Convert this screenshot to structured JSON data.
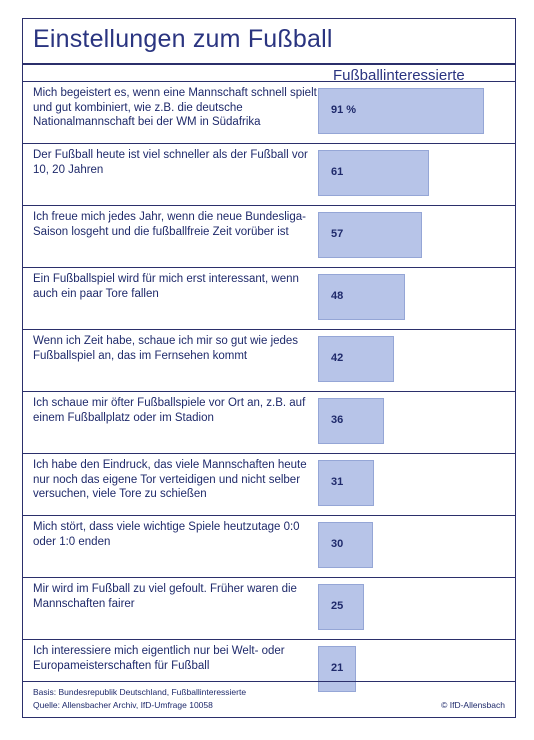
{
  "chart_data": {
    "type": "bar",
    "title": "Einstellungen zum Fußball",
    "series": [
      {
        "name": "Fußballinteressierte",
        "values": [
          91,
          61,
          57,
          48,
          42,
          36,
          31,
          30,
          25,
          21
        ],
        "value_labels": [
          "91 %",
          "61",
          "57",
          "48",
          "42",
          "36",
          "31",
          "30",
          "25",
          "21"
        ]
      }
    ],
    "categories": [
      "Mich begeistert es, wenn eine Mannschaft schnell spielt und gut kombiniert, wie z.B. die deutsche Nationalmannschaft bei der WM in Südafrika",
      "Der Fußball heute ist viel schneller als der Fußball vor 10, 20 Jahren",
      "Ich freue mich jedes Jahr, wenn die neue Bundesliga-Saison losgeht und die fußballfreie Zeit vorüber ist",
      "Ein Fußballspiel wird für mich erst interessant, wenn auch ein paar Tore fallen",
      "Wenn ich Zeit habe, schaue ich mir so gut wie jedes Fußballspiel an, das im Fernsehen kommt",
      "Ich schaue mir öfter Fußballspiele vor Ort an, z.B. auf einem Fußballplatz oder im Stadion",
      "Ich habe den Eindruck, das viele Mannschaften heute nur noch das eigene Tor verteidigen und nicht selber versuchen, viele Tore zu schießen",
      "Mich stört, dass viele wichtige Spiele heutzutage 0:0 oder 1:0 enden",
      "Mir wird im Fußball zu viel gefoult. Früher waren die Mannschaften fairer",
      "Ich interessiere mich eigentlich nur bei Welt- oder Europameisterschaften für Fußball"
    ],
    "ylim": [
      0,
      100
    ],
    "colors": {
      "bar": "#b7c4e8",
      "bar_border": "#95a6d6",
      "text": "#1f2a6b",
      "rule": "#2b2f6b"
    }
  },
  "footer": {
    "basis": "Basis: Bundesrepublik Deutschland, Fußballinteressierte",
    "source": "Quelle: Allensbacher Archiv, IfD-Umfrage 10058",
    "copyright": "© IfD-Allensbach"
  }
}
